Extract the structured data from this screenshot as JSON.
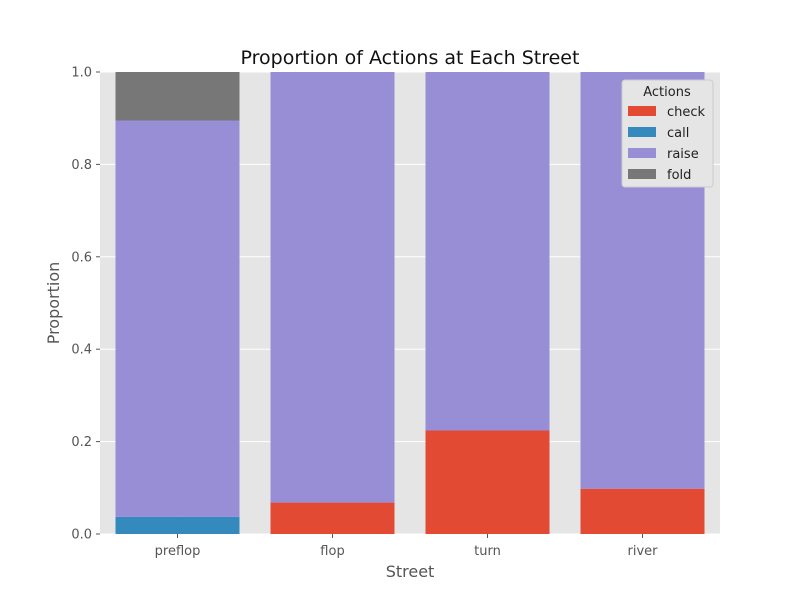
{
  "chart_data": {
    "type": "bar",
    "stacked": true,
    "title": "Proportion of Actions at Each Street",
    "xlabel": "Street",
    "ylabel": "Proportion",
    "categories": [
      "preflop",
      "flop",
      "turn",
      "river"
    ],
    "ylim": [
      0,
      1.0
    ],
    "yticks": [
      0.0,
      0.2,
      0.4,
      0.6,
      0.8,
      1.0
    ],
    "ytick_labels": [
      "0.0",
      "0.2",
      "0.4",
      "0.6",
      "0.8",
      "1.0"
    ],
    "grid": true,
    "legend_title": "Actions",
    "legend_position": "top-right",
    "series": [
      {
        "name": "check",
        "color": "#E24A33",
        "values": [
          0.0,
          0.068,
          0.224,
          0.098
        ]
      },
      {
        "name": "call",
        "color": "#348ABD",
        "values": [
          0.037,
          0.0,
          0.0,
          0.0
        ]
      },
      {
        "name": "raise",
        "color": "#988ED5",
        "values": [
          0.858,
          0.932,
          0.776,
          0.902
        ]
      },
      {
        "name": "fold",
        "color": "#777777",
        "values": [
          0.105,
          0.0,
          0.0,
          0.0
        ]
      }
    ]
  }
}
